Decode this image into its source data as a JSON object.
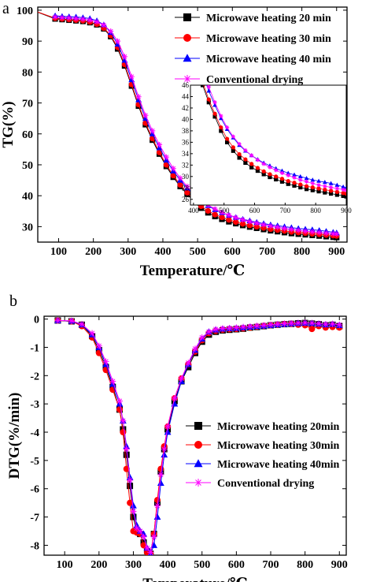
{
  "colors": {
    "mw20": "#000000",
    "mw30": "#ff0000",
    "mw40": "#0000ff",
    "conv": "#ff00ff"
  },
  "chart_data": [
    {
      "panel": "a",
      "type": "scatter",
      "xlabel": "Temperature/℃",
      "ylabel": "TG(%)",
      "xlim": [
        40,
        930
      ],
      "ylim": [
        25,
        101
      ],
      "xticks": [
        100,
        200,
        300,
        400,
        500,
        600,
        700,
        800,
        900
      ],
      "yticks": [
        30,
        40,
        50,
        60,
        70,
        80,
        90,
        100
      ],
      "grid": false,
      "legend_position": "top-right",
      "series": [
        {
          "name": "Microwave heating 20 min",
          "marker": "square",
          "color": "#000000",
          "x": [
            30,
            90,
            110,
            130,
            150,
            170,
            190,
            210,
            230,
            250,
            270,
            290,
            310,
            330,
            350,
            370,
            390,
            410,
            430,
            450,
            470,
            490,
            510,
            530,
            550,
            570,
            590,
            610,
            630,
            650,
            670,
            690,
            710,
            730,
            750,
            770,
            790,
            810,
            830,
            850,
            870,
            890,
            900
          ],
          "y": [
            99.8,
            97.2,
            97.0,
            96.8,
            96.6,
            96.4,
            96.0,
            95.3,
            94.0,
            91.5,
            87.5,
            82.0,
            75.5,
            69.0,
            63.0,
            58.0,
            53.5,
            49.5,
            46.0,
            43.0,
            40.5,
            38.0,
            36.0,
            34.5,
            33.3,
            32.4,
            31.6,
            31.0,
            30.4,
            29.9,
            29.5,
            29.1,
            28.7,
            28.4,
            28.1,
            27.8,
            27.6,
            27.4,
            27.2,
            27.0,
            26.8,
            26.6,
            26.5
          ]
        },
        {
          "name": "Microwave heating 30 min",
          "marker": "circle",
          "color": "#ff0000",
          "x": [
            30,
            90,
            110,
            130,
            150,
            170,
            190,
            210,
            230,
            250,
            270,
            290,
            310,
            330,
            350,
            370,
            390,
            410,
            430,
            450,
            470,
            490,
            510,
            530,
            550,
            570,
            590,
            610,
            630,
            650,
            670,
            690,
            710,
            730,
            750,
            770,
            790,
            810,
            830,
            850,
            870,
            890,
            900
          ],
          "y": [
            99.8,
            97.4,
            97.2,
            97.0,
            96.8,
            96.6,
            96.2,
            95.5,
            94.2,
            91.8,
            88.0,
            82.5,
            76.0,
            69.5,
            63.5,
            58.5,
            54.0,
            50.0,
            46.5,
            43.5,
            41.0,
            38.6,
            36.6,
            35.1,
            33.9,
            33.0,
            32.2,
            31.5,
            30.9,
            30.4,
            30.0,
            29.6,
            29.2,
            28.9,
            28.6,
            28.3,
            28.1,
            27.9,
            27.7,
            27.5,
            27.3,
            27.1,
            27.0
          ]
        },
        {
          "name": "Microwave heating 40 min",
          "marker": "triangle",
          "color": "#0000ff",
          "x": [
            90,
            110,
            130,
            150,
            170,
            190,
            210,
            230,
            250,
            270,
            290,
            310,
            330,
            350,
            370,
            390,
            410,
            430,
            450,
            470,
            490,
            510,
            530,
            550,
            570,
            590,
            610,
            630,
            650,
            670,
            690,
            710,
            730,
            750,
            770,
            790,
            810,
            830,
            850,
            870,
            890,
            900
          ],
          "y": [
            98.2,
            98.0,
            97.9,
            97.8,
            97.6,
            97.3,
            96.6,
            95.3,
            92.8,
            89.0,
            83.8,
            77.5,
            71.0,
            65.0,
            60.0,
            55.5,
            51.5,
            48.0,
            45.0,
            42.5,
            40.2,
            38.3,
            36.8,
            35.5,
            34.5,
            33.7,
            33.0,
            32.4,
            31.9,
            31.4,
            31.0,
            30.6,
            30.3,
            30.0,
            29.7,
            29.4,
            29.2,
            29.0,
            28.8,
            28.5,
            28.2,
            28.0
          ]
        },
        {
          "name": "Conventional drying",
          "marker": "asterisk",
          "color": "#ff00ff",
          "x": [
            90,
            110,
            130,
            150,
            170,
            190,
            210,
            230,
            250,
            270,
            290,
            310,
            330,
            350,
            370,
            390,
            410,
            430,
            450,
            470,
            490,
            510,
            530,
            550,
            570,
            590,
            610,
            630,
            650,
            670,
            690,
            710,
            730,
            750,
            770,
            790,
            810,
            830,
            850,
            870,
            890,
            900
          ],
          "y": [
            97.8,
            97.6,
            97.5,
            97.3,
            97.1,
            96.8,
            96.2,
            95.2,
            93.2,
            90.0,
            85.0,
            78.5,
            72.0,
            66.0,
            61.0,
            56.5,
            52.5,
            48.8,
            45.7,
            43.0,
            40.6,
            38.6,
            37.0,
            35.7,
            34.6,
            33.7,
            32.9,
            32.2,
            31.6,
            31.1,
            30.6,
            30.2,
            29.8,
            29.4,
            29.1,
            28.8,
            28.5,
            28.3,
            28.1,
            27.9,
            27.7,
            27.6
          ]
        }
      ],
      "inset": {
        "xlim": [
          390,
          900
        ],
        "ylim": [
          25,
          46
        ],
        "xticks": [
          400,
          500,
          600,
          700,
          800,
          900
        ],
        "yticks": [
          26,
          28,
          30,
          32,
          34,
          36,
          38,
          40,
          42,
          44,
          46
        ]
      }
    },
    {
      "panel": "b",
      "type": "scatter",
      "xlabel": "Temperature/℃",
      "ylabel": "DTG(%/min)",
      "xlim": [
        40,
        920
      ],
      "ylim": [
        -8.35,
        0.1
      ],
      "xticks": [
        100,
        200,
        300,
        400,
        500,
        600,
        700,
        800,
        900
      ],
      "yticks": [
        0,
        -1,
        -2,
        -3,
        -4,
        -5,
        -6,
        -7,
        -8
      ],
      "grid": false,
      "legend_position": "center-right",
      "series": [
        {
          "name": "Microwave heating 20min",
          "marker": "square",
          "color": "#000000",
          "x": [
            80,
            120,
            150,
            180,
            200,
            220,
            240,
            260,
            270,
            280,
            290,
            300,
            310,
            320,
            330,
            340,
            350,
            360,
            370,
            380,
            390,
            400,
            420,
            440,
            460,
            480,
            500,
            520,
            540,
            560,
            580,
            600,
            620,
            640,
            660,
            680,
            700,
            720,
            740,
            760,
            780,
            800,
            820,
            840,
            860,
            880,
            900
          ],
          "y": [
            -0.05,
            -0.08,
            -0.2,
            -0.6,
            -1.1,
            -1.7,
            -2.4,
            -3.2,
            -3.9,
            -4.8,
            -5.9,
            -7.0,
            -7.5,
            -7.6,
            -7.9,
            -8.2,
            -8.3,
            -7.6,
            -6.5,
            -5.4,
            -4.6,
            -3.9,
            -2.9,
            -2.2,
            -1.7,
            -1.2,
            -0.8,
            -0.55,
            -0.45,
            -0.4,
            -0.38,
            -0.36,
            -0.34,
            -0.3,
            -0.28,
            -0.25,
            -0.22,
            -0.2,
            -0.18,
            -0.17,
            -0.15,
            -0.14,
            -0.16,
            -0.18,
            -0.22,
            -0.2,
            -0.25
          ]
        },
        {
          "name": "Microwave heating 30min",
          "marker": "circle",
          "color": "#ff0000",
          "x": [
            80,
            120,
            150,
            180,
            200,
            220,
            240,
            260,
            270,
            280,
            290,
            300,
            310,
            320,
            330,
            340,
            350,
            360,
            370,
            380,
            390,
            400,
            420,
            440,
            460,
            480,
            500,
            520,
            540,
            560,
            580,
            600,
            620,
            640,
            660,
            680,
            700,
            720,
            740,
            760,
            780,
            800,
            820,
            840,
            860,
            880,
            900
          ],
          "y": [
            -0.05,
            -0.08,
            -0.25,
            -0.65,
            -1.2,
            -1.8,
            -2.5,
            -3.2,
            -4.0,
            -5.3,
            -6.5,
            -7.5,
            -7.55,
            -7.6,
            -8.0,
            -8.25,
            -8.3,
            -7.6,
            -6.4,
            -5.3,
            -4.5,
            -3.8,
            -2.8,
            -2.1,
            -1.6,
            -1.15,
            -0.75,
            -0.5,
            -0.42,
            -0.38,
            -0.36,
            -0.35,
            -0.33,
            -0.3,
            -0.27,
            -0.24,
            -0.22,
            -0.2,
            -0.18,
            -0.17,
            -0.2,
            -0.22,
            -0.35,
            -0.25,
            -0.3,
            -0.28,
            -0.3
          ]
        },
        {
          "name": "Microwave heating 40min",
          "marker": "triangle",
          "color": "#0000ff",
          "x": [
            80,
            120,
            150,
            180,
            200,
            220,
            240,
            260,
            270,
            280,
            290,
            300,
            310,
            320,
            330,
            340,
            350,
            360,
            370,
            380,
            390,
            400,
            420,
            440,
            460,
            480,
            500,
            520,
            540,
            560,
            580,
            600,
            620,
            640,
            660,
            680,
            700,
            720,
            740,
            760,
            780,
            800,
            820,
            840,
            860,
            880,
            900
          ],
          "y": [
            -0.05,
            -0.07,
            -0.2,
            -0.55,
            -1.0,
            -1.6,
            -2.3,
            -3.0,
            -3.6,
            -4.5,
            -5.6,
            -6.6,
            -7.3,
            -7.5,
            -7.6,
            -8.1,
            -8.3,
            -8.0,
            -7.0,
            -5.8,
            -4.8,
            -4.0,
            -3.0,
            -2.2,
            -1.6,
            -1.1,
            -0.7,
            -0.45,
            -0.38,
            -0.35,
            -0.33,
            -0.32,
            -0.3,
            -0.28,
            -0.26,
            -0.24,
            -0.22,
            -0.2,
            -0.18,
            -0.16,
            -0.15,
            -0.14,
            -0.15,
            -0.17,
            -0.2,
            -0.18,
            -0.22
          ]
        },
        {
          "name": "Conventional drying",
          "marker": "asterisk",
          "color": "#ff00ff",
          "x": [
            80,
            120,
            150,
            180,
            200,
            220,
            240,
            260,
            270,
            280,
            290,
            300,
            310,
            320,
            330,
            340,
            350,
            360,
            370,
            380,
            390,
            400,
            420,
            440,
            460,
            480,
            500,
            520,
            540,
            560,
            580,
            600,
            620,
            640,
            660,
            680,
            700,
            720,
            740,
            760,
            780,
            800,
            820,
            840,
            860,
            880,
            900
          ],
          "y": [
            -0.05,
            -0.06,
            -0.18,
            -0.5,
            -0.95,
            -1.5,
            -2.2,
            -2.9,
            -3.6,
            -4.6,
            -5.7,
            -6.8,
            -7.4,
            -7.5,
            -7.7,
            -8.1,
            -8.25,
            -7.7,
            -6.6,
            -5.5,
            -4.6,
            -3.8,
            -2.8,
            -2.1,
            -1.55,
            -1.05,
            -0.65,
            -0.45,
            -0.36,
            -0.33,
            -0.32,
            -0.3,
            -0.28,
            -0.26,
            -0.24,
            -0.22,
            -0.2,
            -0.18,
            -0.16,
            -0.15,
            -0.14,
            -0.13,
            -0.14,
            -0.16,
            -0.18,
            -0.17,
            -0.2
          ]
        }
      ]
    }
  ]
}
